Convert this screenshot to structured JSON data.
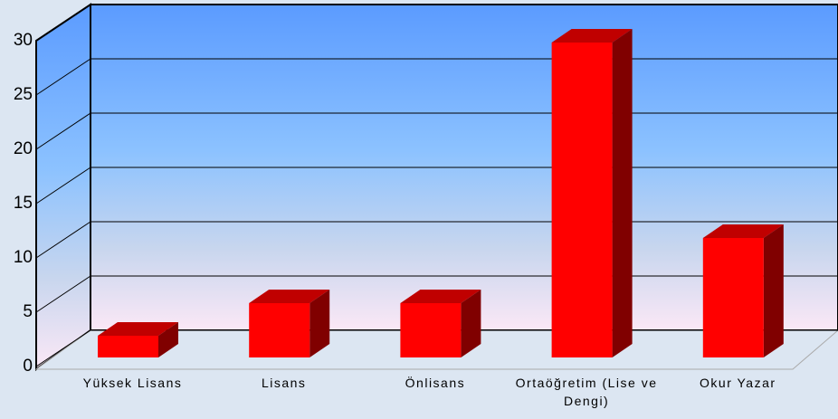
{
  "chart_data": {
    "type": "bar",
    "categories": [
      "Yüksek Lisans",
      "Lisans",
      "Önlisans",
      "Ortaöğretim (Lise ve Dengi)",
      "Okur Yazar"
    ],
    "values": [
      2,
      5,
      5,
      29,
      11
    ],
    "color": "#ff0000",
    "ylim": [
      0,
      30
    ],
    "yticks": [
      0,
      5,
      10,
      15,
      20,
      25,
      30
    ],
    "grid": true
  }
}
